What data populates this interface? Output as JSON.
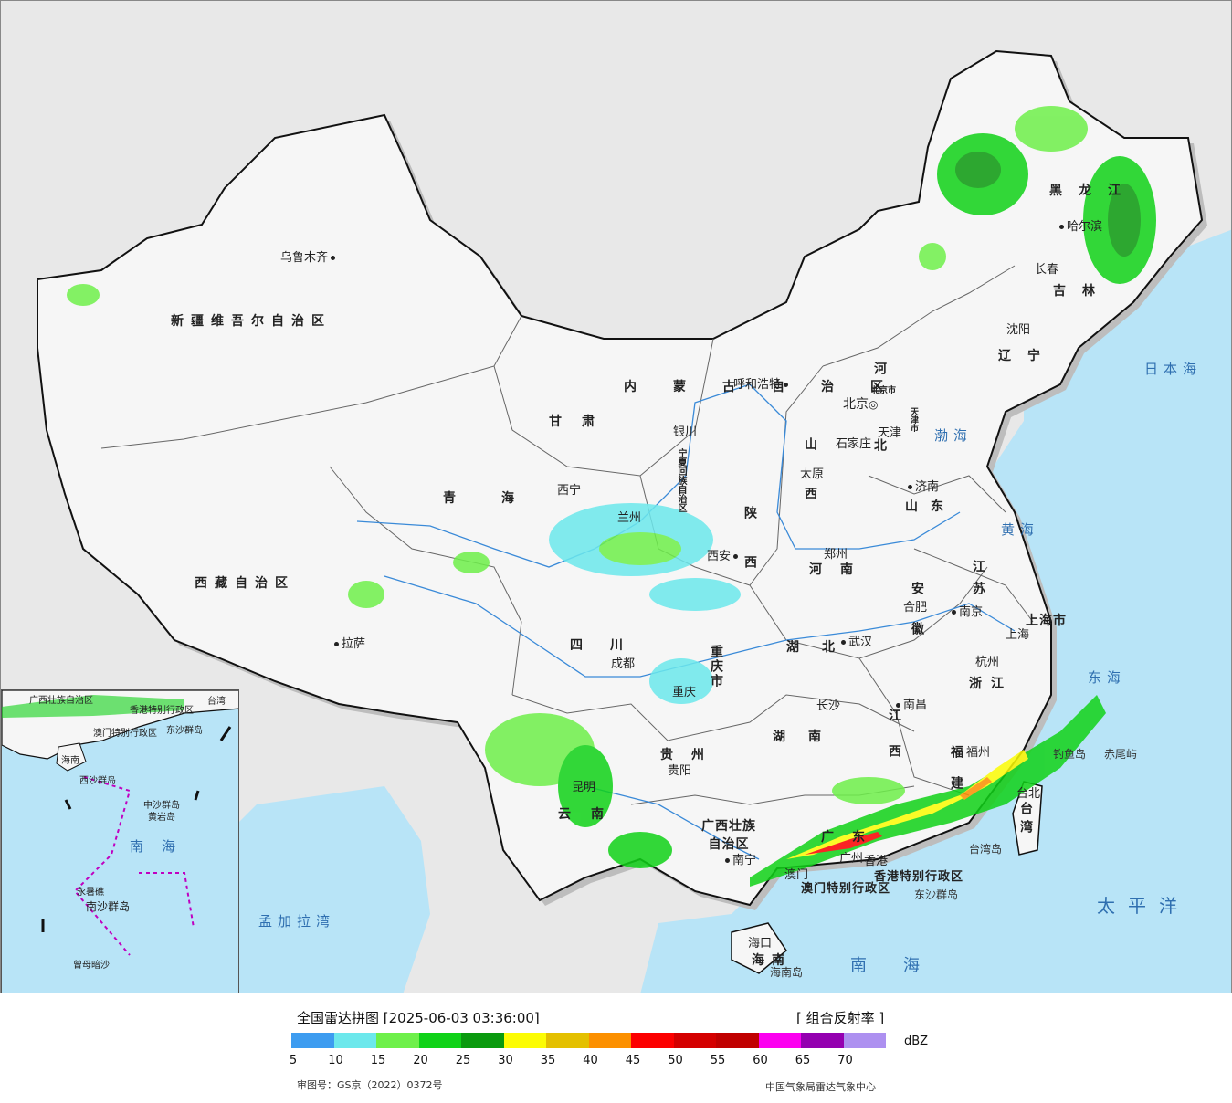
{
  "map": {
    "provinces": [
      {
        "name": "新疆维吾尔自治区"
      },
      {
        "name": "西藏自治区"
      },
      {
        "name": "青海"
      },
      {
        "name": "甘肃"
      },
      {
        "name": "四川"
      },
      {
        "name": "云南"
      },
      {
        "name": "内蒙古自治区"
      },
      {
        "name": "黑龙江"
      },
      {
        "name": "吉林"
      },
      {
        "name": "辽宁"
      },
      {
        "name": "河北"
      },
      {
        "name": "山西"
      },
      {
        "name": "陕西"
      },
      {
        "name": "河南"
      },
      {
        "name": "山东"
      },
      {
        "name": "江苏"
      },
      {
        "name": "安徽"
      },
      {
        "name": "湖北"
      },
      {
        "name": "湖南"
      },
      {
        "name": "江西"
      },
      {
        "name": "浙江"
      },
      {
        "name": "福建"
      },
      {
        "name": "广东"
      },
      {
        "name": "贵州"
      },
      {
        "name": "海南"
      },
      {
        "name": "台湾"
      }
    ],
    "cities": [
      {
        "name": "乌鲁木齐"
      },
      {
        "name": "拉萨"
      },
      {
        "name": "西宁"
      },
      {
        "name": "兰州"
      },
      {
        "name": "银川"
      },
      {
        "name": "呼和浩特"
      },
      {
        "name": "北京"
      },
      {
        "name": "天津"
      },
      {
        "name": "石家庄"
      },
      {
        "name": "太原"
      },
      {
        "name": "济南"
      },
      {
        "name": "郑州"
      },
      {
        "name": "西安"
      },
      {
        "name": "成都"
      },
      {
        "name": "重庆"
      },
      {
        "name": "武汉"
      },
      {
        "name": "合肥"
      },
      {
        "name": "南京"
      },
      {
        "name": "上海"
      },
      {
        "name": "杭州"
      },
      {
        "name": "南昌"
      },
      {
        "name": "长沙"
      },
      {
        "name": "贵阳"
      },
      {
        "name": "昆明"
      },
      {
        "name": "南宁"
      },
      {
        "name": "广州"
      },
      {
        "name": "福州"
      },
      {
        "name": "台北"
      },
      {
        "name": "哈尔滨"
      },
      {
        "name": "长春"
      },
      {
        "name": "沈阳"
      },
      {
        "name": "海口"
      },
      {
        "name": "香港"
      },
      {
        "name": "澳门"
      }
    ],
    "special": [
      {
        "name": "宁夏回族自治区"
      },
      {
        "name": "重庆市"
      },
      {
        "name": "上海市"
      },
      {
        "name": "广西壮族自治区"
      },
      {
        "name": "香港特别行政区"
      },
      {
        "name": "澳门特别行政区"
      },
      {
        "name": "北京市"
      },
      {
        "name": "天津市"
      }
    ],
    "seas": [
      {
        "name": "日本海"
      },
      {
        "name": "渤海"
      },
      {
        "name": "黄海"
      },
      {
        "name": "东海"
      },
      {
        "name": "太平洋"
      },
      {
        "name": "南海"
      },
      {
        "name": "孟加拉湾"
      }
    ],
    "islands": [
      {
        "name": "钓鱼岛"
      },
      {
        "name": "赤尾屿"
      },
      {
        "name": "台湾岛"
      },
      {
        "name": "东沙群岛"
      },
      {
        "name": "海南岛"
      }
    ],
    "inset_labels": [
      {
        "name": "广西壮族自治区"
      },
      {
        "name": "香港特别行政区"
      },
      {
        "name": "澳门特别行政区"
      },
      {
        "name": "台湾"
      },
      {
        "name": "海南"
      },
      {
        "name": "东沙群岛"
      },
      {
        "name": "西沙群岛"
      },
      {
        "name": "中沙群岛"
      },
      {
        "name": "黄岩岛"
      },
      {
        "name": "南海"
      },
      {
        "name": "永暑礁"
      },
      {
        "name": "南沙群岛"
      },
      {
        "name": "曾母暗沙"
      }
    ]
  },
  "legend": {
    "title": "全国雷达拼图 [2025-06-03 03:36:00]",
    "product": "[ 组合反射率 ]",
    "unit": "dBZ",
    "colors": [
      "#3d9cf0",
      "#6ce8ec",
      "#6ef04a",
      "#10d218",
      "#0a9a0e",
      "#fcfc04",
      "#e4c000",
      "#fc9000",
      "#fc0000",
      "#d40000",
      "#c00000",
      "#fc00f0",
      "#9400b0",
      "#ad90f0"
    ],
    "ticks": [
      "5",
      "10",
      "15",
      "20",
      "25",
      "30",
      "35",
      "40",
      "45",
      "50",
      "55",
      "60",
      "65",
      "70"
    ],
    "approval": "审图号：GS京（2022）0372号",
    "org": "中国气象局雷达气象中心"
  }
}
